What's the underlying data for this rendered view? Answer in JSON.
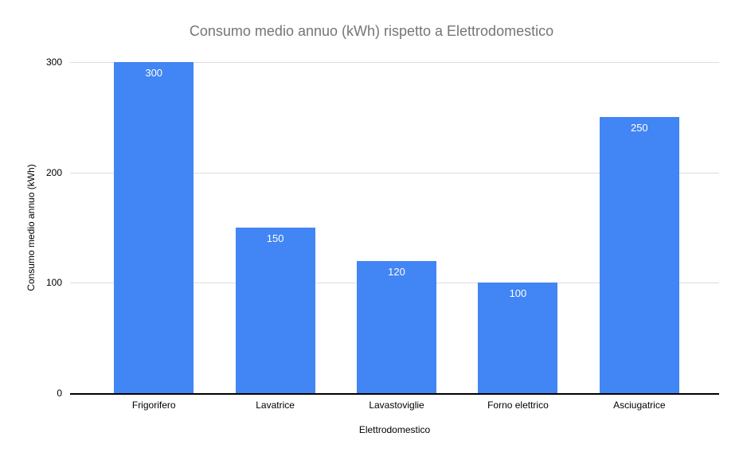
{
  "page": {
    "background": "#ffffff"
  },
  "chart_data": {
    "type": "bar",
    "title": "Consumo medio annuo (kWh) rispetto a Elettrodomestico",
    "xlabel": "Elettrodomestico",
    "ylabel": "Consumo medio annuo (kWh)",
    "categories": [
      "Frigorifero",
      "Lavatrice",
      "Lavastoviglie",
      "Forno elettrico",
      "Asciugatrice"
    ],
    "values": [
      300,
      150,
      120,
      100,
      250
    ],
    "yticks": [
      0,
      100,
      200,
      300
    ],
    "ylim": [
      0,
      300
    ],
    "grid": true,
    "legend_position": "none",
    "colors": {
      "bar": "#4285f4",
      "value_label": "#ffffff",
      "title": "#757575",
      "axis_text": "#000000",
      "gridline": "#dddddd",
      "axis_line": "#000000",
      "background": "#ffffff"
    }
  }
}
